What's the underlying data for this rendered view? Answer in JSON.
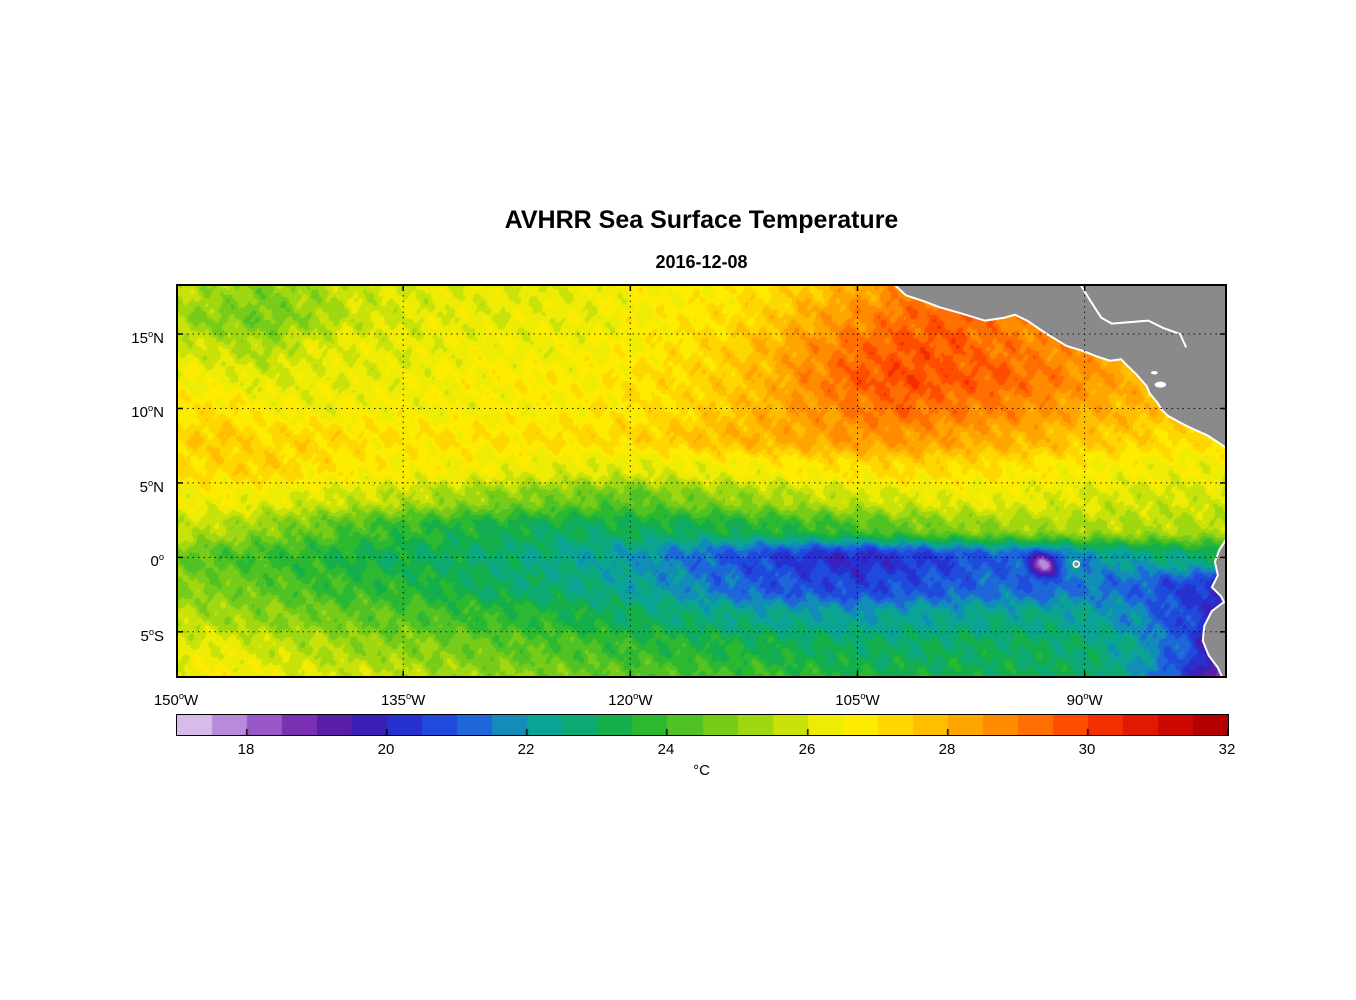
{
  "figure": {
    "title": "AVHRR Sea Surface Temperature",
    "subtitle": "2016-12-08",
    "background": "#ffffff"
  },
  "chart_data": {
    "type": "heatmap",
    "title": "AVHRR Sea Surface Temperature",
    "subtitle": "2016-12-08",
    "units": "°C",
    "lon_range": [
      -150,
      -80.6
    ],
    "lat_range": [
      -8.1,
      18.36
    ],
    "x_ticks": [
      {
        "lon": -150,
        "deg": "150",
        "hemi": "W",
        "label": "150°W"
      },
      {
        "lon": -135,
        "deg": "135",
        "hemi": "W",
        "label": "135°W"
      },
      {
        "lon": -120,
        "deg": "120",
        "hemi": "W",
        "label": "120°W"
      },
      {
        "lon": -105,
        "deg": "105",
        "hemi": "W",
        "label": "105°W"
      },
      {
        "lon": -90,
        "deg": "90",
        "hemi": "W",
        "label": "90°W"
      }
    ],
    "y_ticks": [
      {
        "lat": 15,
        "deg": "15",
        "hemi": "N",
        "label": "15°N"
      },
      {
        "lat": 10,
        "deg": "10",
        "hemi": "N",
        "label": "10°N"
      },
      {
        "lat": 5,
        "deg": "5",
        "hemi": "N",
        "label": "5°N"
      },
      {
        "lat": 0,
        "deg": "0",
        "hemi": "",
        "label": "0°"
      },
      {
        "lat": -5,
        "deg": "5",
        "hemi": "S",
        "label": "5°S"
      }
    ],
    "colorbar": {
      "min": 17,
      "max": 32,
      "step": 0.5,
      "ticks": [
        18,
        20,
        22,
        24,
        26,
        28,
        30,
        32
      ],
      "label": "°C",
      "orientation": "horizontal"
    },
    "colormap": [
      [
        17.0,
        "#E3D1F2"
      ],
      [
        17.5,
        "#C9A4E4"
      ],
      [
        18.0,
        "#A86FD2"
      ],
      [
        18.5,
        "#8A3FBC"
      ],
      [
        19.0,
        "#6A21A8"
      ],
      [
        19.5,
        "#4A18A8"
      ],
      [
        20.0,
        "#2B25C8"
      ],
      [
        20.6,
        "#2142DC"
      ],
      [
        21.2,
        "#1E63DC"
      ],
      [
        22.0,
        "#0D9FA8"
      ],
      [
        22.6,
        "#0AA87E"
      ],
      [
        23.2,
        "#12AE4E"
      ],
      [
        23.8,
        "#2FB92F"
      ],
      [
        24.4,
        "#5BC51F"
      ],
      [
        25.0,
        "#8BD114"
      ],
      [
        25.6,
        "#BCDF0C"
      ],
      [
        26.2,
        "#ECEC04"
      ],
      [
        26.8,
        "#FFEB00"
      ],
      [
        27.4,
        "#FFD000"
      ],
      [
        28.0,
        "#FFB200"
      ],
      [
        28.6,
        "#FF9300"
      ],
      [
        29.2,
        "#FF7100"
      ],
      [
        29.8,
        "#FF4A00"
      ],
      [
        30.4,
        "#EF2600"
      ],
      [
        31.0,
        "#D90E00"
      ],
      [
        31.6,
        "#BC0000"
      ],
      [
        32.0,
        "#A30000"
      ]
    ],
    "land_color": "#8a8a8a",
    "coast_color": "#ffffff",
    "grid": {
      "lats": [
        18,
        16,
        14,
        12,
        10,
        8,
        6,
        4,
        2,
        0,
        -2,
        -4,
        -6,
        -8
      ],
      "lons": [
        -150,
        -147,
        -144,
        -141,
        -138,
        -135,
        -132,
        -129,
        -126,
        -123,
        -120,
        -117,
        -114,
        -111,
        -108,
        -105,
        -102,
        -99,
        -96,
        -93,
        -90,
        -87,
        -84,
        -81
      ],
      "sst": [
        [
          25.6,
          25.2,
          24.9,
          25.3,
          25.8,
          26.0,
          26.1,
          26.2,
          26.0,
          26.3,
          26.5,
          26.6,
          26.8,
          27.1,
          27.6,
          28.2,
          28.7,
          29.0,
          29.0,
          28.6,
          28.2,
          28.0,
          27.8,
          27.8
        ],
        [
          25.3,
          24.9,
          24.7,
          25.2,
          25.8,
          26.0,
          26.2,
          26.1,
          26.3,
          26.2,
          26.5,
          26.8,
          27.0,
          27.4,
          28.1,
          28.7,
          29.3,
          29.5,
          29.1,
          28.6,
          28.2,
          27.8,
          27.6,
          27.5
        ],
        [
          26.0,
          25.7,
          25.4,
          26.0,
          26.2,
          26.1,
          26.3,
          26.5,
          26.3,
          26.5,
          26.6,
          27.0,
          27.3,
          27.9,
          28.6,
          29.3,
          29.6,
          29.6,
          29.2,
          28.9,
          28.5,
          28.0,
          27.6,
          27.5
        ],
        [
          26.5,
          26.3,
          26.0,
          26.2,
          26.1,
          26.3,
          26.5,
          26.6,
          26.8,
          26.6,
          27.0,
          27.1,
          27.4,
          27.9,
          28.8,
          29.5,
          29.8,
          29.6,
          29.5,
          29.1,
          28.6,
          28.1,
          27.8,
          27.6
        ],
        [
          26.8,
          27.0,
          26.6,
          26.3,
          26.5,
          26.5,
          26.4,
          26.5,
          26.6,
          26.8,
          26.9,
          27.1,
          27.5,
          28.0,
          28.5,
          29.0,
          29.3,
          29.1,
          28.9,
          28.6,
          28.2,
          27.9,
          27.6,
          27.4
        ],
        [
          27.2,
          27.5,
          27.1,
          27.3,
          27.0,
          26.9,
          27.0,
          26.9,
          27.0,
          27.1,
          27.2,
          27.5,
          27.8,
          28.0,
          28.2,
          28.5,
          28.5,
          28.3,
          28.1,
          27.9,
          27.6,
          27.4,
          27.1,
          27.0
        ],
        [
          27.0,
          27.2,
          27.4,
          27.0,
          26.8,
          26.6,
          26.5,
          26.4,
          26.2,
          26.1,
          26.1,
          26.2,
          26.4,
          26.6,
          26.8,
          27.0,
          27.2,
          27.1,
          27.0,
          26.8,
          26.6,
          26.5,
          26.4,
          26.3
        ],
        [
          26.4,
          26.5,
          26.2,
          26.0,
          25.8,
          25.6,
          25.3,
          25.0,
          24.8,
          24.6,
          24.4,
          24.8,
          25.0,
          25.3,
          25.6,
          25.8,
          26.0,
          26.2,
          26.3,
          26.1,
          26.0,
          25.9,
          25.9,
          26.0
        ],
        [
          25.8,
          25.5,
          25.0,
          24.6,
          24.1,
          23.8,
          23.5,
          23.3,
          23.1,
          23.0,
          23.2,
          23.1,
          23.3,
          23.5,
          23.8,
          24.1,
          24.5,
          24.9,
          25.1,
          25.3,
          25.4,
          25.5,
          25.5,
          25.5
        ],
        [
          24.6,
          24.2,
          23.9,
          23.6,
          23.3,
          23.1,
          23.0,
          22.8,
          22.6,
          22.3,
          22.0,
          21.5,
          21.0,
          20.6,
          20.2,
          20.0,
          20.3,
          20.6,
          21.0,
          21.0,
          21.8,
          22.2,
          22.6,
          23.0
        ],
        [
          25.0,
          24.8,
          24.4,
          24.0,
          23.8,
          23.6,
          23.3,
          23.0,
          22.8,
          22.6,
          22.3,
          21.9,
          21.4,
          21.0,
          20.8,
          20.6,
          20.8,
          21.0,
          21.3,
          21.1,
          21.5,
          21.2,
          20.6,
          20.0
        ],
        [
          25.6,
          25.3,
          25.0,
          24.8,
          24.5,
          24.3,
          24.0,
          23.8,
          23.6,
          23.3,
          23.0,
          22.8,
          22.6,
          22.4,
          22.3,
          22.1,
          22.3,
          22.3,
          22.5,
          22.5,
          22.3,
          21.8,
          20.8,
          20.0
        ],
        [
          26.0,
          26.2,
          25.8,
          25.5,
          25.2,
          25.0,
          24.8,
          24.5,
          24.3,
          24.1,
          23.8,
          23.6,
          23.4,
          23.3,
          23.1,
          23.0,
          22.9,
          23.0,
          23.0,
          23.0,
          22.8,
          22.3,
          21.2,
          19.5
        ],
        [
          26.3,
          26.6,
          26.3,
          26.0,
          25.8,
          25.6,
          25.3,
          25.0,
          24.9,
          24.6,
          24.4,
          24.2,
          24.0,
          23.9,
          23.6,
          23.4,
          23.3,
          23.3,
          23.2,
          23.1,
          23.0,
          22.2,
          20.8,
          18.8
        ]
      ]
    },
    "anomalies": [
      {
        "lon": -92.7,
        "lat": -0.5,
        "amp": 3.4,
        "sigma": 0.55,
        "note": "cold eddy near Galapagos"
      }
    ],
    "land": {
      "central_america": [
        [
          -102.6,
          18.36
        ],
        [
          -101.8,
          17.6
        ],
        [
          -100.6,
          17.2
        ],
        [
          -99.6,
          16.8
        ],
        [
          -98.2,
          16.4
        ],
        [
          -96.6,
          15.9
        ],
        [
          -95.3,
          16.1
        ],
        [
          -94.6,
          16.3
        ],
        [
          -93.8,
          15.9
        ],
        [
          -92.5,
          15.0
        ],
        [
          -91.2,
          14.2
        ],
        [
          -90.2,
          13.9
        ],
        [
          -89.2,
          13.5
        ],
        [
          -88.3,
          13.2
        ],
        [
          -87.6,
          13.3
        ],
        [
          -87.2,
          12.9
        ],
        [
          -86.6,
          12.3
        ],
        [
          -85.9,
          11.5
        ],
        [
          -85.7,
          11.0
        ],
        [
          -85.2,
          10.4
        ],
        [
          -84.9,
          9.9
        ],
        [
          -84.5,
          9.5
        ],
        [
          -83.6,
          9.0
        ],
        [
          -82.8,
          8.6
        ],
        [
          -81.9,
          8.2
        ],
        [
          -81.0,
          7.6
        ],
        [
          -80.6,
          7.3
        ],
        [
          -80.6,
          18.36
        ]
      ],
      "south_america": [
        [
          -80.6,
          1.3
        ],
        [
          -81.1,
          0.5
        ],
        [
          -81.4,
          -0.3
        ],
        [
          -81.2,
          -1.2
        ],
        [
          -81.6,
          -2.0
        ],
        [
          -81.0,
          -2.6
        ],
        [
          -80.8,
          -3.0
        ],
        [
          -81.6,
          -3.6
        ],
        [
          -82.1,
          -4.6
        ],
        [
          -82.2,
          -5.6
        ],
        [
          -81.8,
          -6.6
        ],
        [
          -81.2,
          -7.4
        ],
        [
          -80.9,
          -8.1
        ],
        [
          -80.6,
          -8.1
        ]
      ],
      "caribbean_coastline": [
        [
          -90.3,
          18.36
        ],
        [
          -89.6,
          17.2
        ],
        [
          -88.9,
          16.1
        ],
        [
          -88.2,
          15.7
        ],
        [
          -87.0,
          15.8
        ],
        [
          -85.8,
          15.9
        ],
        [
          -84.8,
          15.4
        ],
        [
          -83.7,
          15.0
        ],
        [
          -83.3,
          14.1
        ]
      ],
      "lakes": [
        {
          "lon": -85.4,
          "lat": 12.4,
          "rx": 0.22,
          "ry": 0.12
        },
        {
          "lon": -85.0,
          "lat": 11.6,
          "rx": 0.38,
          "ry": 0.2
        }
      ],
      "islands": [
        {
          "lon": -90.55,
          "lat": -0.45,
          "r": 3
        }
      ]
    }
  }
}
